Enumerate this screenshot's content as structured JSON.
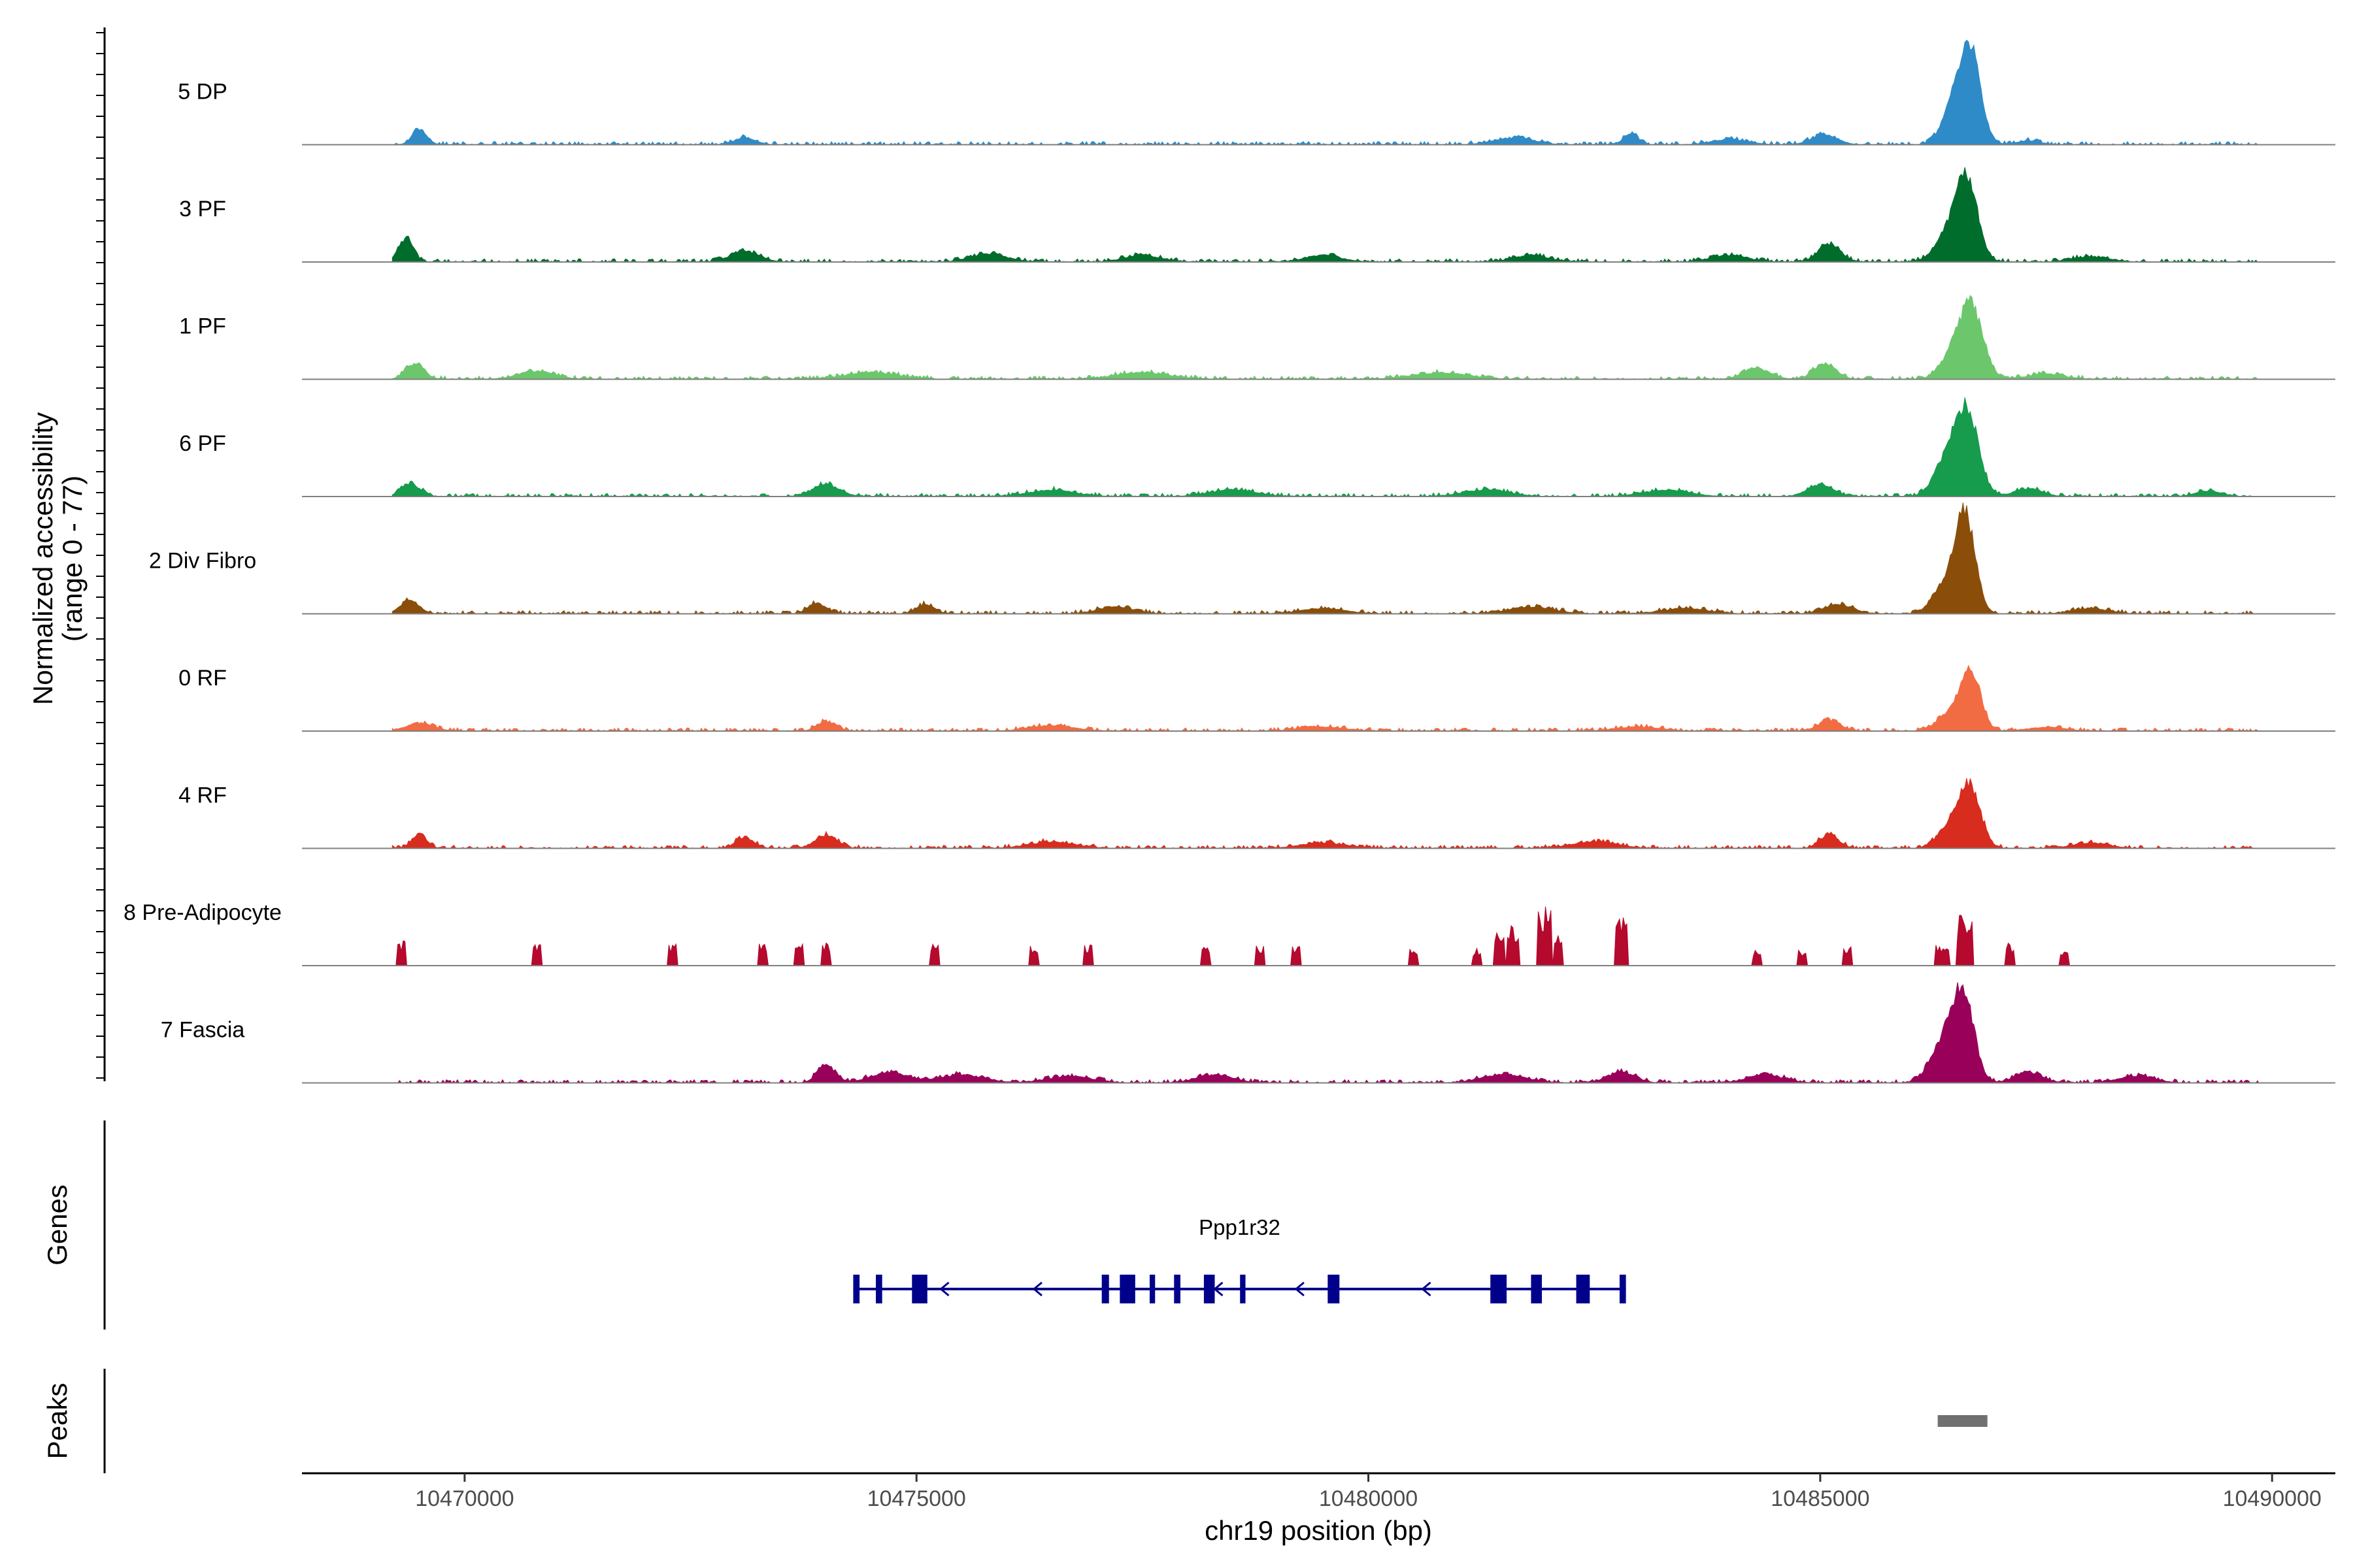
{
  "chart_data": {
    "type": "area",
    "title": "",
    "xlabel": "chr19 position (bp)",
    "ylabel": "Normalized accessibility",
    "ylabel_range": "(range 0 - 77)",
    "xlim": [
      10468200,
      10490700
    ],
    "ylim": [
      0,
      77
    ],
    "x_ticks": [
      10470000,
      10475000,
      10480000,
      10485000,
      10490000
    ],
    "x_tick_labels": [
      "10470000",
      "10475000",
      "10480000",
      "10485000",
      "10490000"
    ],
    "data_start": 10469200,
    "data_end": 10489850,
    "series": [
      {
        "name": "5 DP",
        "color": "#2e8bc8",
        "peaks": [
          [
            10486650,
            72,
            120
          ],
          [
            10486450,
            22,
            120
          ],
          [
            10469500,
            12,
            80
          ],
          [
            10482900,
            8,
            80
          ],
          [
            10485050,
            8,
            140
          ],
          [
            10473100,
            5,
            120
          ],
          [
            10481600,
            5,
            220
          ],
          [
            10484000,
            4,
            200
          ],
          [
            10487300,
            3,
            120
          ]
        ]
      },
      {
        "name": "3 PF",
        "color": "#006d2c",
        "peaks": [
          [
            10486620,
            62,
            120
          ],
          [
            10486400,
            18,
            140
          ],
          [
            10485100,
            14,
            120
          ],
          [
            10469350,
            18,
            80
          ],
          [
            10473100,
            8,
            160
          ],
          [
            10475800,
            6,
            200
          ],
          [
            10477500,
            5,
            200
          ],
          [
            10479500,
            5,
            200
          ],
          [
            10481800,
            5,
            200
          ],
          [
            10484000,
            5,
            200
          ],
          [
            10488000,
            4,
            200
          ]
        ]
      },
      {
        "name": "1 PF",
        "color": "#6cc76c",
        "peaks": [
          [
            10486670,
            55,
            130
          ],
          [
            10486450,
            16,
            130
          ],
          [
            10485050,
            12,
            120
          ],
          [
            10484300,
            8,
            150
          ],
          [
            10469450,
            12,
            100
          ],
          [
            10470800,
            6,
            200
          ],
          [
            10474500,
            5,
            300
          ],
          [
            10477500,
            5,
            300
          ],
          [
            10480800,
            5,
            300
          ],
          [
            10487500,
            4,
            200
          ]
        ]
      },
      {
        "name": "6 PF",
        "color": "#179b4c",
        "peaks": [
          [
            10486620,
            64,
            130
          ],
          [
            10486380,
            24,
            130
          ],
          [
            10485000,
            9,
            140
          ],
          [
            10469400,
            10,
            100
          ],
          [
            10474000,
            9,
            150
          ],
          [
            10476500,
            5,
            250
          ],
          [
            10478500,
            5,
            250
          ],
          [
            10481300,
            5,
            250
          ],
          [
            10483300,
            5,
            250
          ],
          [
            10487300,
            6,
            150
          ],
          [
            10489300,
            4,
            150
          ]
        ]
      },
      {
        "name": "2 Div Fibro",
        "color": "#8a4e0a",
        "peaks": [
          [
            10486600,
            77,
            110
          ],
          [
            10486350,
            20,
            120
          ],
          [
            10485200,
            7,
            160
          ],
          [
            10469400,
            10,
            100
          ],
          [
            10473900,
            8,
            100
          ],
          [
            10475100,
            7,
            100
          ],
          [
            10477200,
            5,
            200
          ],
          [
            10479500,
            4,
            250
          ],
          [
            10481800,
            5,
            250
          ],
          [
            10483500,
            4,
            250
          ],
          [
            10488000,
            4,
            200
          ]
        ]
      },
      {
        "name": "0 RF",
        "color": "#f26c43",
        "peaks": [
          [
            10486660,
            47,
            110
          ],
          [
            10486400,
            12,
            120
          ],
          [
            10485100,
            8,
            120
          ],
          [
            10469500,
            6,
            150
          ],
          [
            10474000,
            7,
            100
          ],
          [
            10476500,
            4,
            250
          ],
          [
            10479500,
            3,
            250
          ],
          [
            10483000,
            3,
            250
          ],
          [
            10487500,
            3,
            200
          ]
        ]
      },
      {
        "name": "4 RF",
        "color": "#d82c1f",
        "peaks": [
          [
            10486650,
            48,
            120
          ],
          [
            10486400,
            14,
            120
          ],
          [
            10485100,
            11,
            100
          ],
          [
            10469500,
            11,
            80
          ],
          [
            10473100,
            8,
            100
          ],
          [
            10474000,
            10,
            120
          ],
          [
            10476500,
            5,
            250
          ],
          [
            10479500,
            4,
            250
          ],
          [
            10482500,
            5,
            250
          ],
          [
            10488000,
            4,
            200
          ]
        ]
      },
      {
        "name": "8 Pre-Adipocyte",
        "color": "#b5092e",
        "peaks": [
          [
            10469300,
            18,
            60
          ],
          [
            10470800,
            16,
            60
          ],
          [
            10472300,
            16,
            60
          ],
          [
            10473300,
            16,
            60
          ],
          [
            10473700,
            16,
            60
          ],
          [
            10474000,
            16,
            60
          ],
          [
            10475200,
            18,
            60
          ],
          [
            10476300,
            16,
            60
          ],
          [
            10476900,
            16,
            60
          ],
          [
            10478200,
            14,
            60
          ],
          [
            10478800,
            14,
            60
          ],
          [
            10479200,
            14,
            60
          ],
          [
            10480500,
            12,
            60
          ],
          [
            10481200,
            12,
            60
          ],
          [
            10481450,
            24,
            70
          ],
          [
            10481600,
            28,
            70
          ],
          [
            10481950,
            42,
            80
          ],
          [
            10482100,
            24,
            60
          ],
          [
            10482800,
            34,
            80
          ],
          [
            10484300,
            12,
            60
          ],
          [
            10484800,
            12,
            60
          ],
          [
            10485300,
            14,
            60
          ],
          [
            10486600,
            36,
            100
          ],
          [
            10486350,
            16,
            80
          ],
          [
            10487100,
            16,
            60
          ],
          [
            10487700,
            10,
            60
          ]
        ]
      },
      {
        "name": "7 Fascia",
        "color": "#99005a",
        "peaks": [
          [
            10486580,
            66,
            120
          ],
          [
            10486350,
            28,
            140
          ],
          [
            10474000,
            13,
            100
          ],
          [
            10474700,
            8,
            200
          ],
          [
            10475500,
            6,
            250
          ],
          [
            10476700,
            5,
            250
          ],
          [
            10478300,
            6,
            200
          ],
          [
            10481500,
            6,
            250
          ],
          [
            10482800,
            8,
            150
          ],
          [
            10484400,
            6,
            200
          ],
          [
            10487300,
            8,
            150
          ],
          [
            10488500,
            5,
            200
          ]
        ]
      }
    ],
    "genes": {
      "label": "Genes",
      "items": [
        {
          "name": "Ppp1r32",
          "strand": "-",
          "start": 10474300,
          "end": 10482850,
          "exons": [
            [
              10474300,
              10474370
            ],
            [
              10474550,
              10474620
            ],
            [
              10474950,
              10475120
            ],
            [
              10477050,
              10477130
            ],
            [
              10477250,
              10477420
            ],
            [
              10477580,
              10477640
            ],
            [
              10477850,
              10477920
            ],
            [
              10478180,
              10478300
            ],
            [
              10478580,
              10478640
            ],
            [
              10479550,
              10479680
            ],
            [
              10481350,
              10481530
            ],
            [
              10481800,
              10481920
            ],
            [
              10482300,
              10482450
            ],
            [
              10482780,
              10482850
            ]
          ],
          "arrows": [
            10475270,
            10476300,
            10478300,
            10479200,
            10480600,
            10481420
          ]
        }
      ]
    },
    "peaks_track": {
      "label": "Peaks",
      "color": "#707070",
      "regions": [
        [
          10486300,
          10486850
        ]
      ]
    }
  }
}
